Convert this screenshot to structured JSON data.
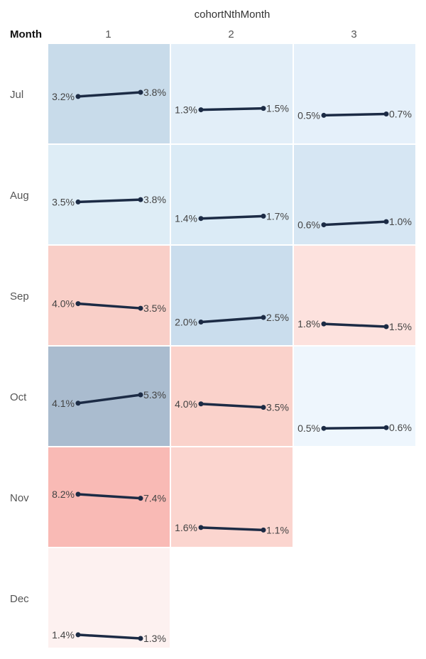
{
  "chart_data": {
    "type": "line",
    "column_field": "cohortNthMonth",
    "row_field": "Month",
    "columns": [
      "1",
      "2",
      "3"
    ],
    "rows": [
      "Jul",
      "Aug",
      "Sep",
      "Oct",
      "Nov",
      "Dec"
    ],
    "cells": [
      {
        "row": "Jul",
        "col": "1",
        "start": 3.2,
        "end": 3.8,
        "start_label": "3.2%",
        "end_label": "3.8%",
        "color": "#c8dbea"
      },
      {
        "row": "Jul",
        "col": "2",
        "start": 1.3,
        "end": 1.5,
        "start_label": "1.3%",
        "end_label": "1.5%",
        "color": "#e2eef8"
      },
      {
        "row": "Jul",
        "col": "3",
        "start": 0.5,
        "end": 0.7,
        "start_label": "0.5%",
        "end_label": "0.7%",
        "color": "#e5f0fa"
      },
      {
        "row": "Aug",
        "col": "1",
        "start": 3.5,
        "end": 3.8,
        "start_label": "3.5%",
        "end_label": "3.8%",
        "color": "#deedf6"
      },
      {
        "row": "Aug",
        "col": "2",
        "start": 1.4,
        "end": 1.7,
        "start_label": "1.4%",
        "end_label": "1.7%",
        "color": "#dbebf6"
      },
      {
        "row": "Aug",
        "col": "3",
        "start": 0.6,
        "end": 1.0,
        "start_label": "0.6%",
        "end_label": "1.0%",
        "color": "#d6e6f3"
      },
      {
        "row": "Sep",
        "col": "1",
        "start": 4.0,
        "end": 3.5,
        "start_label": "4.0%",
        "end_label": "3.5%",
        "color": "#f9cfc8"
      },
      {
        "row": "Sep",
        "col": "2",
        "start": 2.0,
        "end": 2.5,
        "start_label": "2.0%",
        "end_label": "2.5%",
        "color": "#cadded"
      },
      {
        "row": "Sep",
        "col": "3",
        "start": 1.8,
        "end": 1.5,
        "start_label": "1.8%",
        "end_label": "1.5%",
        "color": "#fde2de"
      },
      {
        "row": "Oct",
        "col": "1",
        "start": 4.1,
        "end": 5.3,
        "start_label": "4.1%",
        "end_label": "5.3%",
        "color": "#aabccf"
      },
      {
        "row": "Oct",
        "col": "2",
        "start": 4.0,
        "end": 3.5,
        "start_label": "4.0%",
        "end_label": "3.5%",
        "color": "#fad2cb"
      },
      {
        "row": "Oct",
        "col": "3",
        "start": 0.5,
        "end": 0.6,
        "start_label": "0.5%",
        "end_label": "0.6%",
        "color": "#eef6fd"
      },
      {
        "row": "Nov",
        "col": "1",
        "start": 8.2,
        "end": 7.4,
        "start_label": "8.2%",
        "end_label": "7.4%",
        "color": "#f9bab5"
      },
      {
        "row": "Nov",
        "col": "2",
        "start": 1.6,
        "end": 1.1,
        "start_label": "1.6%",
        "end_label": "1.1%",
        "color": "#fbd5cf"
      },
      {
        "row": "Dec",
        "col": "1",
        "start": 1.4,
        "end": 1.3,
        "start_label": "1.4%",
        "end_label": "1.3%",
        "color": "#fdf1f0"
      }
    ],
    "line_color": "#1c2b45",
    "label_color": "#444444",
    "grid": false,
    "legend": "none"
  }
}
